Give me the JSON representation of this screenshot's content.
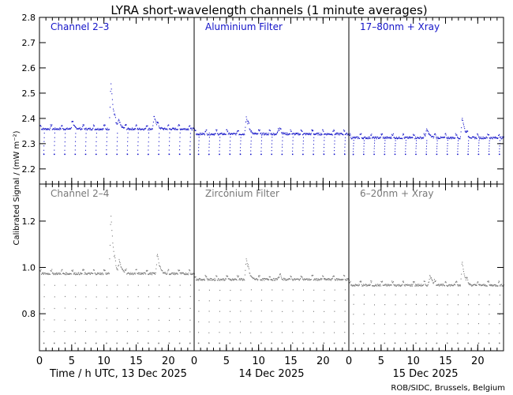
{
  "title": "LYRA short-wavelength channels (1 minute averages)",
  "ylabel": "Calibrated Signal / (mW m⁻²)",
  "xlabel": "Time / h UTC, 13 Dec 2025",
  "day_labels": [
    "14 Dec 2025",
    "15 Dec 2025"
  ],
  "credit": "ROB/SIDC, Brussels, Belgium",
  "x_ticks": [
    "0",
    "5",
    "10",
    "15",
    "20"
  ],
  "colors": {
    "top_series": "#1414c8",
    "bottom_series": "#787878",
    "axes": "#000000"
  },
  "chart_data": [
    {
      "type": "scatter",
      "row": "top",
      "ylim": [
        2.14,
        2.8
      ],
      "y_ticks": [
        "2.2",
        "2.3",
        "2.4",
        "2.5",
        "2.6",
        "2.7",
        "2.8"
      ],
      "xlim": [
        0,
        24
      ],
      "panels": [
        {
          "label": "Channel 2–3",
          "baseline": 2.36,
          "dip": 2.26,
          "peaks": [
            [
              11.0,
              2.55
            ],
            [
              12.2,
              2.39
            ],
            [
              17.7,
              2.41
            ],
            [
              5.0,
              2.38
            ]
          ]
        },
        {
          "label": "Aluminium Filter",
          "baseline": 2.34,
          "dip": 2.26,
          "peaks": [
            [
              8.0,
              2.41
            ],
            [
              13.0,
              2.36
            ]
          ]
        },
        {
          "label": "17–80nm + Xray",
          "baseline": 2.325,
          "dip": 2.26,
          "peaks": [
            [
              12.0,
              2.36
            ],
            [
              17.5,
              2.41
            ]
          ]
        }
      ]
    },
    {
      "type": "scatter",
      "row": "bottom",
      "ylim": [
        0.64,
        1.36
      ],
      "y_ticks": [
        "0.8",
        "1.0",
        "1.2"
      ],
      "xlim": [
        0,
        24
      ],
      "panels": [
        {
          "label": "Channel 2–4",
          "baseline": 0.975,
          "dip": 0.675,
          "peaks": [
            [
              11.0,
              1.24
            ],
            [
              12.3,
              1.03
            ],
            [
              18.2,
              1.05
            ]
          ]
        },
        {
          "label": "Zirconium Filter",
          "baseline": 0.95,
          "dip": 0.675,
          "peaks": [
            [
              8.0,
              1.04
            ],
            [
              13.0,
              0.96
            ]
          ]
        },
        {
          "label": "6–20nm + Xray",
          "baseline": 0.925,
          "dip": 0.675,
          "peaks": [
            [
              12.5,
              0.97
            ],
            [
              17.5,
              1.03
            ]
          ]
        }
      ]
    }
  ]
}
